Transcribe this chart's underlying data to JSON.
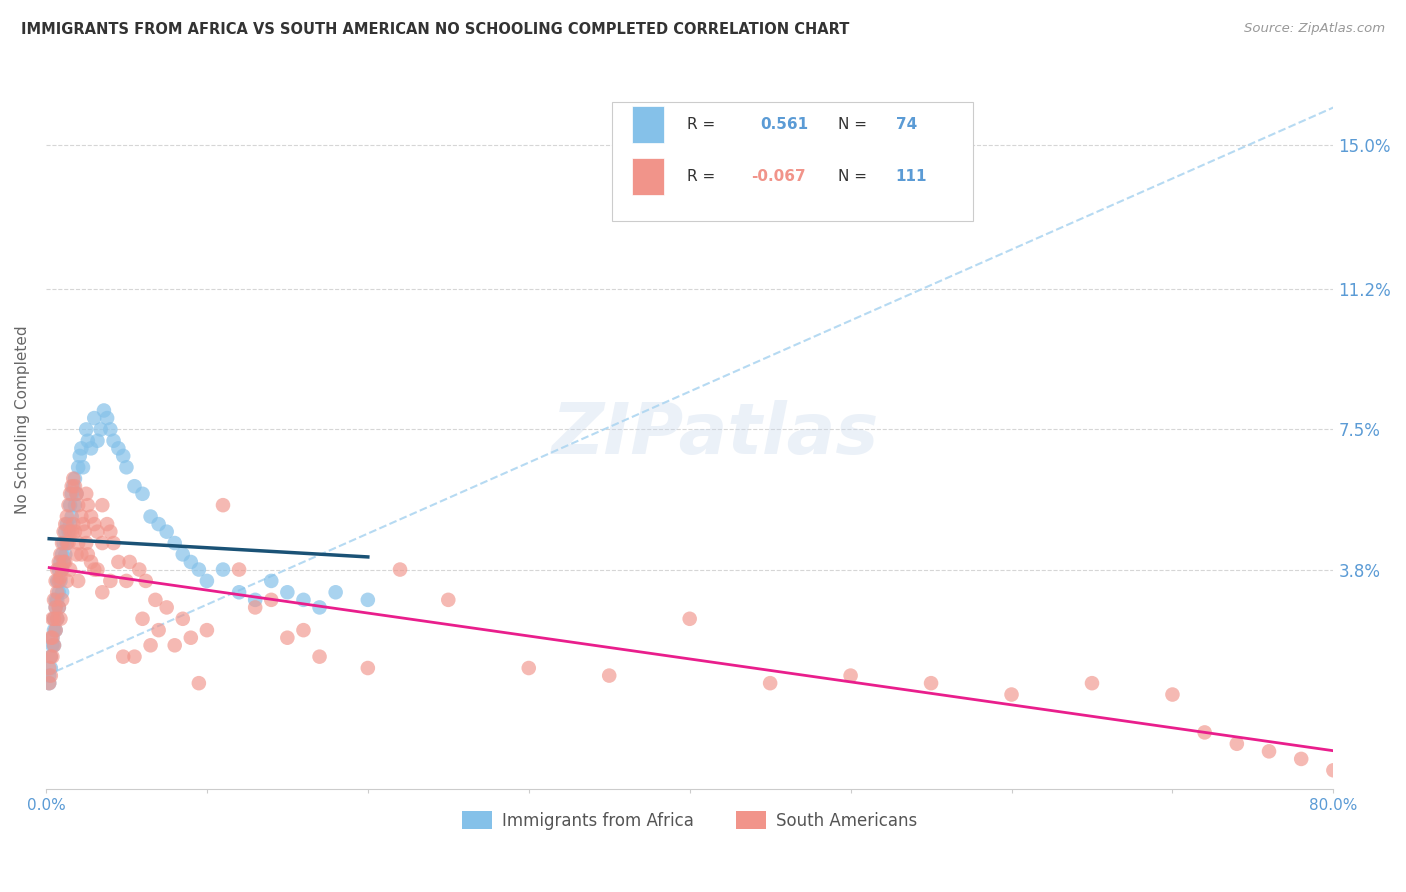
{
  "title": "IMMIGRANTS FROM AFRICA VS SOUTH AMERICAN NO SCHOOLING COMPLETED CORRELATION CHART",
  "source": "Source: ZipAtlas.com",
  "ylabel": "No Schooling Completed",
  "ytick_labels": [
    "15.0%",
    "11.2%",
    "7.5%",
    "3.8%"
  ],
  "ytick_values": [
    0.15,
    0.112,
    0.075,
    0.038
  ],
  "xlim": [
    0.0,
    0.8
  ],
  "ylim": [
    -0.02,
    0.175
  ],
  "africa_color": "#85C1E9",
  "sa_color": "#F1948A",
  "africa_line_color": "#1A5276",
  "sa_line_color": "#E91E8C",
  "dashed_line_color": "#AED6F1",
  "background_color": "#FFFFFF",
  "grid_color": "#CCCCCC",
  "title_color": "#333333",
  "axis_label_color": "#5B9BD5",
  "watermark": "ZIPatlas",
  "africa_points_x": [
    0.002,
    0.002,
    0.003,
    0.003,
    0.004,
    0.004,
    0.005,
    0.005,
    0.005,
    0.006,
    0.006,
    0.006,
    0.007,
    0.007,
    0.007,
    0.008,
    0.008,
    0.008,
    0.009,
    0.009,
    0.01,
    0.01,
    0.01,
    0.011,
    0.011,
    0.012,
    0.012,
    0.013,
    0.013,
    0.014,
    0.015,
    0.015,
    0.016,
    0.016,
    0.017,
    0.018,
    0.018,
    0.019,
    0.02,
    0.021,
    0.022,
    0.023,
    0.025,
    0.026,
    0.028,
    0.03,
    0.032,
    0.034,
    0.036,
    0.038,
    0.04,
    0.042,
    0.045,
    0.048,
    0.05,
    0.055,
    0.06,
    0.065,
    0.07,
    0.075,
    0.08,
    0.085,
    0.09,
    0.095,
    0.1,
    0.11,
    0.12,
    0.13,
    0.14,
    0.15,
    0.16,
    0.17,
    0.18,
    0.2
  ],
  "africa_points_y": [
    0.01,
    0.008,
    0.015,
    0.012,
    0.02,
    0.018,
    0.025,
    0.022,
    0.018,
    0.03,
    0.028,
    0.022,
    0.035,
    0.03,
    0.025,
    0.038,
    0.032,
    0.028,
    0.04,
    0.035,
    0.042,
    0.038,
    0.032,
    0.045,
    0.04,
    0.048,
    0.042,
    0.05,
    0.045,
    0.048,
    0.055,
    0.05,
    0.058,
    0.052,
    0.06,
    0.062,
    0.055,
    0.058,
    0.065,
    0.068,
    0.07,
    0.065,
    0.075,
    0.072,
    0.07,
    0.078,
    0.072,
    0.075,
    0.08,
    0.078,
    0.075,
    0.072,
    0.07,
    0.068,
    0.065,
    0.06,
    0.058,
    0.052,
    0.05,
    0.048,
    0.045,
    0.042,
    0.04,
    0.038,
    0.035,
    0.038,
    0.032,
    0.03,
    0.035,
    0.032,
    0.03,
    0.028,
    0.032,
    0.03
  ],
  "sa_points_x": [
    0.002,
    0.002,
    0.003,
    0.003,
    0.003,
    0.004,
    0.004,
    0.004,
    0.005,
    0.005,
    0.005,
    0.006,
    0.006,
    0.006,
    0.007,
    0.007,
    0.007,
    0.008,
    0.008,
    0.008,
    0.009,
    0.009,
    0.009,
    0.01,
    0.01,
    0.01,
    0.011,
    0.011,
    0.012,
    0.012,
    0.013,
    0.013,
    0.013,
    0.014,
    0.014,
    0.015,
    0.015,
    0.015,
    0.016,
    0.016,
    0.017,
    0.017,
    0.018,
    0.018,
    0.019,
    0.019,
    0.02,
    0.02,
    0.02,
    0.022,
    0.022,
    0.023,
    0.024,
    0.025,
    0.025,
    0.026,
    0.026,
    0.028,
    0.028,
    0.03,
    0.03,
    0.032,
    0.032,
    0.035,
    0.035,
    0.035,
    0.038,
    0.04,
    0.04,
    0.042,
    0.045,
    0.048,
    0.05,
    0.052,
    0.055,
    0.058,
    0.06,
    0.062,
    0.065,
    0.068,
    0.07,
    0.075,
    0.08,
    0.085,
    0.09,
    0.095,
    0.1,
    0.11,
    0.12,
    0.13,
    0.14,
    0.15,
    0.16,
    0.17,
    0.2,
    0.22,
    0.25,
    0.3,
    0.35,
    0.4,
    0.45,
    0.5,
    0.55,
    0.6,
    0.65,
    0.7,
    0.72,
    0.74,
    0.76,
    0.78,
    0.8
  ],
  "sa_points_y": [
    0.012,
    0.008,
    0.02,
    0.015,
    0.01,
    0.025,
    0.02,
    0.015,
    0.03,
    0.025,
    0.018,
    0.035,
    0.028,
    0.022,
    0.038,
    0.032,
    0.025,
    0.04,
    0.035,
    0.028,
    0.042,
    0.036,
    0.025,
    0.045,
    0.038,
    0.03,
    0.048,
    0.04,
    0.05,
    0.04,
    0.052,
    0.045,
    0.035,
    0.055,
    0.045,
    0.058,
    0.048,
    0.038,
    0.06,
    0.048,
    0.062,
    0.05,
    0.06,
    0.048,
    0.058,
    0.042,
    0.055,
    0.045,
    0.035,
    0.052,
    0.042,
    0.05,
    0.048,
    0.058,
    0.045,
    0.055,
    0.042,
    0.052,
    0.04,
    0.05,
    0.038,
    0.048,
    0.038,
    0.055,
    0.045,
    0.032,
    0.05,
    0.048,
    0.035,
    0.045,
    0.04,
    0.015,
    0.035,
    0.04,
    0.015,
    0.038,
    0.025,
    0.035,
    0.018,
    0.03,
    0.022,
    0.028,
    0.018,
    0.025,
    0.02,
    0.008,
    0.022,
    0.055,
    0.038,
    0.028,
    0.03,
    0.02,
    0.022,
    0.015,
    0.012,
    0.038,
    0.03,
    0.012,
    0.01,
    0.025,
    0.008,
    0.01,
    0.008,
    0.005,
    0.008,
    0.005,
    -0.005,
    -0.008,
    -0.01,
    -0.012,
    -0.015
  ]
}
